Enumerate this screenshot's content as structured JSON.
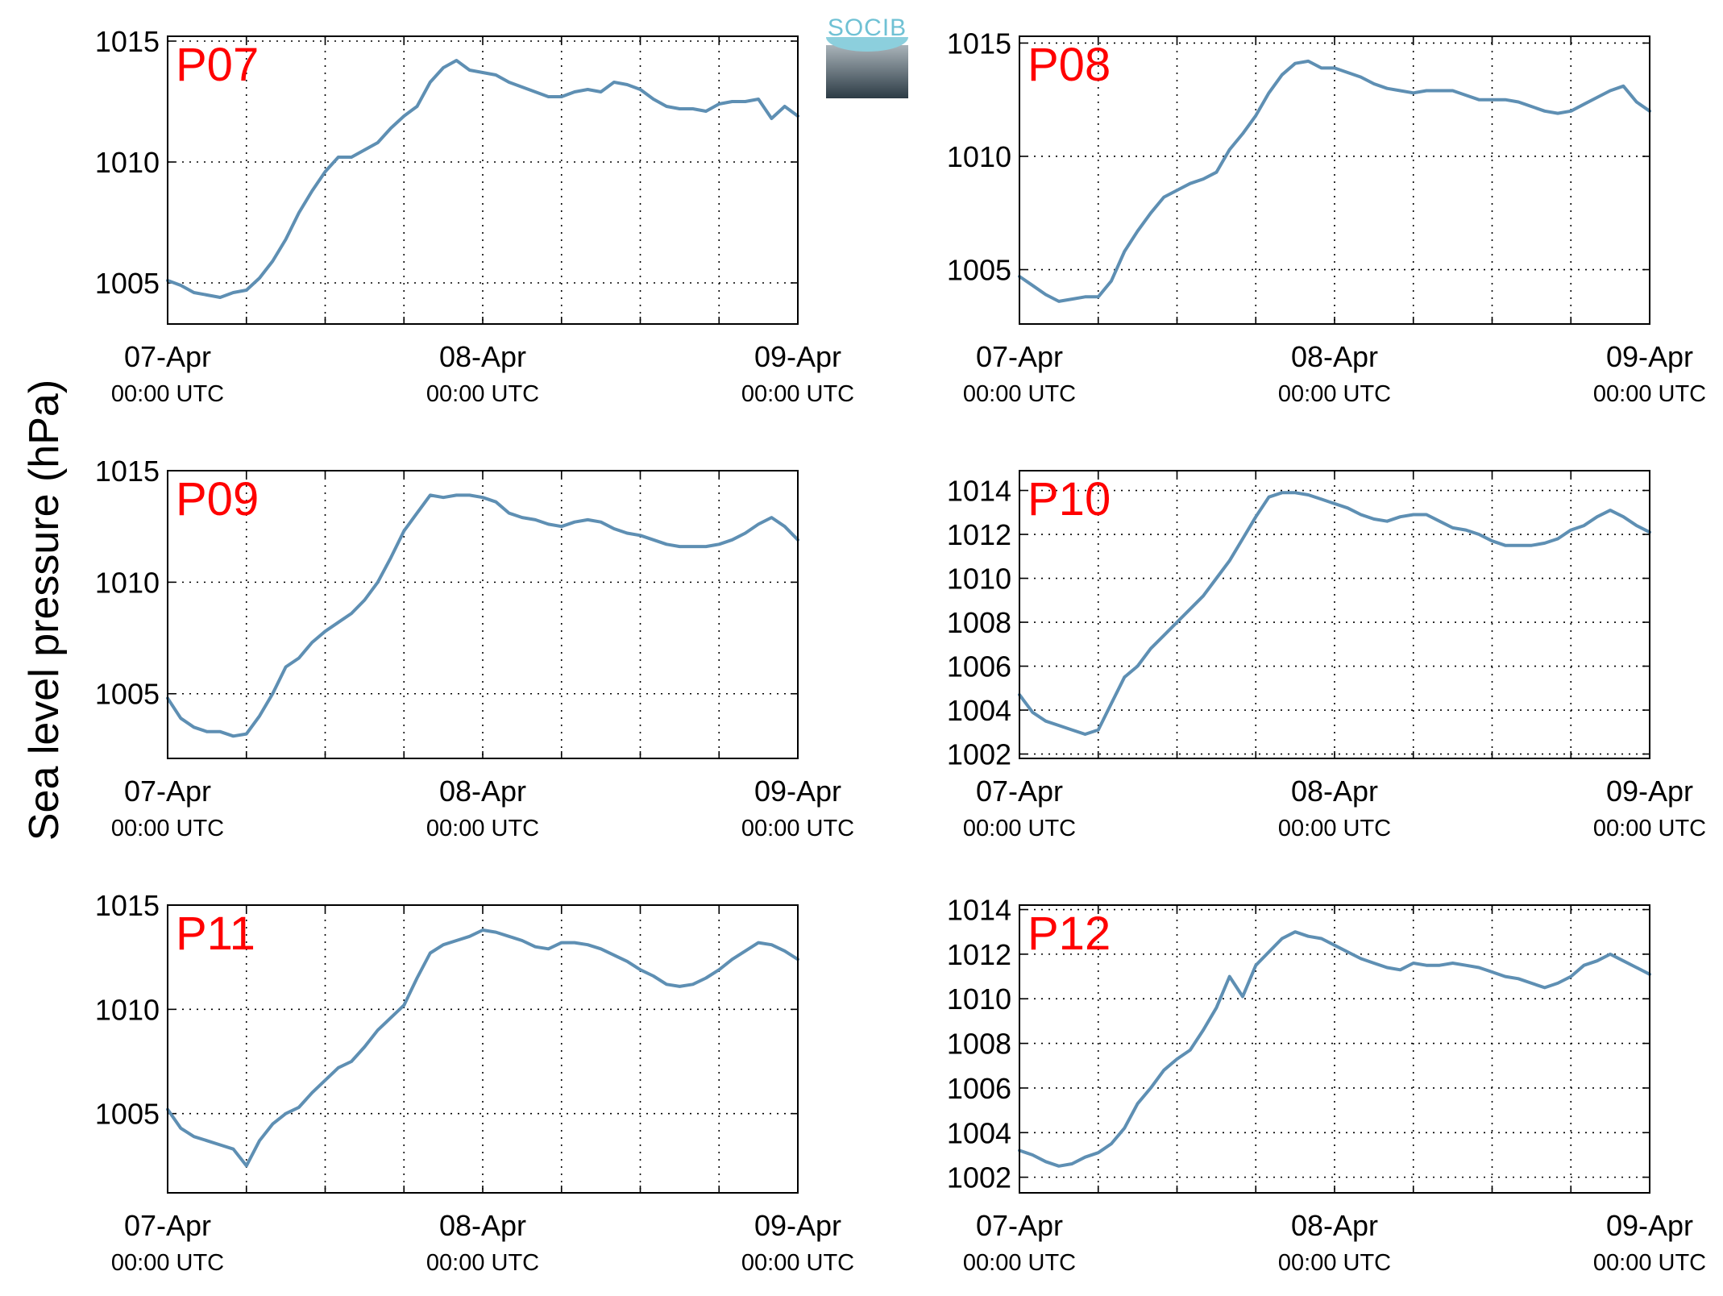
{
  "figure": {
    "ylabel": "Sea level pressure (hPa)",
    "logo_text": "SOCIB",
    "line_color": "#5e8fb3",
    "panel_label_color": "#ff0000"
  },
  "chart_data": [
    {
      "type": "line",
      "panel": "P07",
      "x_ticks": [
        "07-Apr",
        "08-Apr",
        "09-Apr"
      ],
      "x_tick_sub": "00:00 UTC",
      "xlim_hours": [
        0,
        48
      ],
      "ylim": [
        1003.3,
        1015.2
      ],
      "yticks": [
        1005,
        1010,
        1015
      ],
      "series": [
        {
          "x_hours": [
            0,
            1,
            2,
            3,
            4,
            5,
            6,
            7,
            8,
            9,
            10,
            11,
            12,
            13,
            14,
            15,
            16,
            17,
            18,
            19,
            20,
            21,
            22,
            23,
            24,
            25,
            26,
            27,
            28,
            29,
            30,
            31,
            32,
            33,
            34,
            35,
            36,
            37,
            38,
            39,
            40,
            41,
            42,
            43,
            44,
            45,
            46,
            47,
            48
          ],
          "values": [
            1005.1,
            1004.9,
            1004.6,
            1004.5,
            1004.4,
            1004.6,
            1004.7,
            1005.2,
            1005.9,
            1006.8,
            1007.9,
            1008.8,
            1009.6,
            1010.2,
            1010.2,
            1010.5,
            1010.8,
            1011.4,
            1011.9,
            1012.3,
            1013.3,
            1013.9,
            1014.2,
            1013.8,
            1013.7,
            1013.6,
            1013.3,
            1013.1,
            1012.9,
            1012.7,
            1012.7,
            1012.9,
            1013.0,
            1012.9,
            1013.3,
            1013.2,
            1013.0,
            1012.6,
            1012.3,
            1012.2,
            1012.2,
            1012.1,
            1012.4,
            1012.5,
            1012.5,
            1012.6,
            1011.8,
            1012.3,
            1011.9
          ]
        }
      ]
    },
    {
      "type": "line",
      "panel": "P08",
      "x_ticks": [
        "07-Apr",
        "08-Apr",
        "09-Apr"
      ],
      "x_tick_sub": "00:00 UTC",
      "xlim_hours": [
        0,
        48
      ],
      "ylim": [
        1002.6,
        1015.3
      ],
      "yticks": [
        1005,
        1010,
        1015
      ],
      "series": [
        {
          "x_hours": [
            0,
            1,
            2,
            3,
            4,
            5,
            6,
            7,
            8,
            9,
            10,
            11,
            12,
            13,
            14,
            15,
            16,
            17,
            18,
            19,
            20,
            21,
            22,
            23,
            24,
            25,
            26,
            27,
            28,
            29,
            30,
            31,
            32,
            33,
            34,
            35,
            36,
            37,
            38,
            39,
            40,
            41,
            42,
            43,
            44,
            45,
            46,
            47,
            48
          ],
          "values": [
            1004.7,
            1004.3,
            1003.9,
            1003.6,
            1003.7,
            1003.8,
            1003.8,
            1004.5,
            1005.8,
            1006.7,
            1007.5,
            1008.2,
            1008.5,
            1008.8,
            1009.0,
            1009.3,
            1010.3,
            1011.0,
            1011.8,
            1012.8,
            1013.6,
            1014.1,
            1014.2,
            1013.9,
            1013.9,
            1013.7,
            1013.5,
            1013.2,
            1013.0,
            1012.9,
            1012.8,
            1012.9,
            1012.9,
            1012.9,
            1012.7,
            1012.5,
            1012.5,
            1012.5,
            1012.4,
            1012.2,
            1012.0,
            1011.9,
            1012.0,
            1012.3,
            1012.6,
            1012.9,
            1013.1,
            1012.4,
            1012.0
          ]
        }
      ]
    },
    {
      "type": "line",
      "panel": "P09",
      "x_ticks": [
        "07-Apr",
        "08-Apr",
        "09-Apr"
      ],
      "x_tick_sub": "00:00 UTC",
      "xlim_hours": [
        0,
        48
      ],
      "ylim": [
        1002.1,
        1015.0
      ],
      "yticks": [
        1005,
        1010,
        1015
      ],
      "series": [
        {
          "x_hours": [
            0,
            1,
            2,
            3,
            4,
            5,
            6,
            7,
            8,
            9,
            10,
            11,
            12,
            13,
            14,
            15,
            16,
            17,
            18,
            19,
            20,
            21,
            22,
            23,
            24,
            25,
            26,
            27,
            28,
            29,
            30,
            31,
            32,
            33,
            34,
            35,
            36,
            37,
            38,
            39,
            40,
            41,
            42,
            43,
            44,
            45,
            46,
            47,
            48
          ],
          "values": [
            1004.8,
            1003.9,
            1003.5,
            1003.3,
            1003.3,
            1003.1,
            1003.2,
            1004.0,
            1005.0,
            1006.2,
            1006.6,
            1007.3,
            1007.8,
            1008.2,
            1008.6,
            1009.2,
            1010.0,
            1011.1,
            1012.3,
            1013.1,
            1013.9,
            1013.8,
            1013.9,
            1013.9,
            1013.8,
            1013.6,
            1013.1,
            1012.9,
            1012.8,
            1012.6,
            1012.5,
            1012.7,
            1012.8,
            1012.7,
            1012.4,
            1012.2,
            1012.1,
            1011.9,
            1011.7,
            1011.6,
            1011.6,
            1011.6,
            1011.7,
            1011.9,
            1012.2,
            1012.6,
            1012.9,
            1012.5,
            1011.9
          ]
        }
      ]
    },
    {
      "type": "line",
      "panel": "P10",
      "x_ticks": [
        "07-Apr",
        "08-Apr",
        "09-Apr"
      ],
      "x_tick_sub": "00:00 UTC",
      "xlim_hours": [
        0,
        48
      ],
      "ylim": [
        1001.8,
        1014.9
      ],
      "yticks": [
        1002,
        1004,
        1006,
        1008,
        1010,
        1012,
        1014
      ],
      "series": [
        {
          "x_hours": [
            0,
            1,
            2,
            3,
            4,
            5,
            6,
            7,
            8,
            9,
            10,
            11,
            12,
            13,
            14,
            15,
            16,
            17,
            18,
            19,
            20,
            21,
            22,
            23,
            24,
            25,
            26,
            27,
            28,
            29,
            30,
            31,
            32,
            33,
            34,
            35,
            36,
            37,
            38,
            39,
            40,
            41,
            42,
            43,
            44,
            45,
            46,
            47,
            48
          ],
          "values": [
            1004.7,
            1003.9,
            1003.5,
            1003.3,
            1003.1,
            1002.9,
            1003.1,
            1004.3,
            1005.5,
            1006.0,
            1006.8,
            1007.4,
            1008.0,
            1008.6,
            1009.2,
            1010.0,
            1010.8,
            1011.8,
            1012.8,
            1013.7,
            1013.9,
            1013.9,
            1013.8,
            1013.6,
            1013.4,
            1013.2,
            1012.9,
            1012.7,
            1012.6,
            1012.8,
            1012.9,
            1012.9,
            1012.6,
            1012.3,
            1012.2,
            1012.0,
            1011.7,
            1011.5,
            1011.5,
            1011.5,
            1011.6,
            1011.8,
            1012.2,
            1012.4,
            1012.8,
            1013.1,
            1012.8,
            1012.4,
            1012.1
          ]
        }
      ]
    },
    {
      "type": "line",
      "panel": "P11",
      "x_ticks": [
        "07-Apr",
        "08-Apr",
        "09-Apr"
      ],
      "x_tick_sub": "00:00 UTC",
      "xlim_hours": [
        0,
        48
      ],
      "ylim": [
        1001.2,
        1015.0
      ],
      "yticks": [
        1005,
        1010,
        1015
      ],
      "series": [
        {
          "x_hours": [
            0,
            1,
            2,
            3,
            4,
            5,
            6,
            7,
            8,
            9,
            10,
            11,
            12,
            13,
            14,
            15,
            16,
            17,
            18,
            19,
            20,
            21,
            22,
            23,
            24,
            25,
            26,
            27,
            28,
            29,
            30,
            31,
            32,
            33,
            34,
            35,
            36,
            37,
            38,
            39,
            40,
            41,
            42,
            43,
            44,
            45,
            46,
            47,
            48
          ],
          "values": [
            1005.2,
            1004.3,
            1003.9,
            1003.7,
            1003.5,
            1003.3,
            1002.5,
            1003.7,
            1004.5,
            1005.0,
            1005.3,
            1006.0,
            1006.6,
            1007.2,
            1007.5,
            1008.2,
            1009.0,
            1009.6,
            1010.2,
            1011.5,
            1012.7,
            1013.1,
            1013.3,
            1013.5,
            1013.8,
            1013.7,
            1013.5,
            1013.3,
            1013.0,
            1012.9,
            1013.2,
            1013.2,
            1013.1,
            1012.9,
            1012.6,
            1012.3,
            1011.9,
            1011.6,
            1011.2,
            1011.1,
            1011.2,
            1011.5,
            1011.9,
            1012.4,
            1012.8,
            1013.2,
            1013.1,
            1012.8,
            1012.4
          ]
        }
      ]
    },
    {
      "type": "line",
      "panel": "P12",
      "x_ticks": [
        "07-Apr",
        "08-Apr",
        "09-Apr"
      ],
      "x_tick_sub": "00:00 UTC",
      "xlim_hours": [
        0,
        48
      ],
      "ylim": [
        1001.3,
        1014.2
      ],
      "yticks": [
        1002,
        1004,
        1006,
        1008,
        1010,
        1012,
        1014
      ],
      "series": [
        {
          "x_hours": [
            0,
            1,
            2,
            3,
            4,
            5,
            6,
            7,
            8,
            9,
            10,
            11,
            12,
            13,
            14,
            15,
            16,
            17,
            18,
            19,
            20,
            21,
            22,
            23,
            24,
            25,
            26,
            27,
            28,
            29,
            30,
            31,
            32,
            33,
            34,
            35,
            36,
            37,
            38,
            39,
            40,
            41,
            42,
            43,
            44,
            45,
            46,
            47,
            48
          ],
          "values": [
            1003.2,
            1003.0,
            1002.7,
            1002.5,
            1002.6,
            1002.9,
            1003.1,
            1003.5,
            1004.2,
            1005.3,
            1006.0,
            1006.8,
            1007.3,
            1007.7,
            1008.6,
            1009.6,
            1011.0,
            1010.1,
            1011.5,
            1012.1,
            1012.7,
            1013.0,
            1012.8,
            1012.7,
            1012.4,
            1012.1,
            1011.8,
            1011.6,
            1011.4,
            1011.3,
            1011.6,
            1011.5,
            1011.5,
            1011.6,
            1011.5,
            1011.4,
            1011.2,
            1011.0,
            1010.9,
            1010.7,
            1010.5,
            1010.7,
            1011.0,
            1011.5,
            1011.7,
            1012.0,
            1011.7,
            1011.4,
            1011.1
          ]
        }
      ]
    }
  ]
}
